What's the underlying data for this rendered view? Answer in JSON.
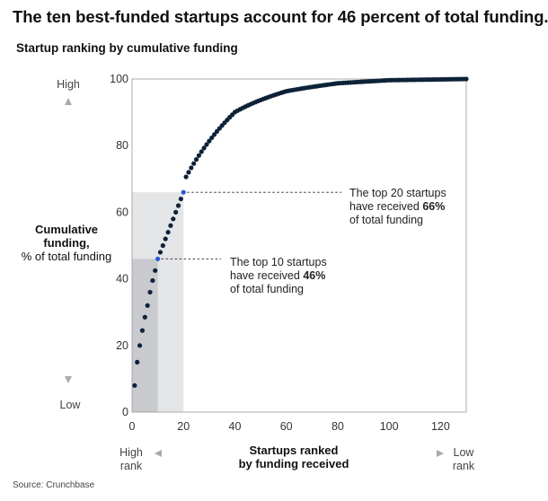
{
  "header": {
    "title": "The ten best-funded startups account for 46 percent of total funding.",
    "subtitle": "Startup ranking by cumulative funding"
  },
  "source": "Source: Crunchbase",
  "chart_data": {
    "type": "scatter",
    "title": "Startup ranking by cumulative funding",
    "xlabel": [
      "Startups ranked",
      "by funding received"
    ],
    "ylabel": [
      "Cumulative",
      "funding,",
      "% of total funding"
    ],
    "xlim": [
      0,
      130
    ],
    "ylim": [
      0,
      100
    ],
    "x_ticks": [
      0,
      20,
      40,
      60,
      80,
      100,
      120
    ],
    "y_ticks": [
      0,
      20,
      40,
      60,
      80,
      100
    ],
    "x_ends": {
      "left": [
        "High",
        "rank"
      ],
      "right": [
        "Low",
        "rank"
      ]
    },
    "y_ends": {
      "top": "High",
      "bottom": "Low"
    },
    "n_points": 130,
    "curve_model": "y = 100 * (1 - (1 - x/130)^k), k fitted so y(10) = 46",
    "anchor_points": [
      {
        "x": 1,
        "y": 8
      },
      {
        "x": 2,
        "y": 15
      },
      {
        "x": 3,
        "y": 20
      },
      {
        "x": 4,
        "y": 24.5
      },
      {
        "x": 5,
        "y": 28.5
      },
      {
        "x": 6,
        "y": 32
      },
      {
        "x": 7,
        "y": 36
      },
      {
        "x": 8,
        "y": 39.5
      },
      {
        "x": 9,
        "y": 42.5
      },
      {
        "x": 10,
        "y": 46
      },
      {
        "x": 20,
        "y": 66
      },
      {
        "x": 40,
        "y": 86
      },
      {
        "x": 60,
        "y": 93.5
      },
      {
        "x": 80,
        "y": 97.5
      },
      {
        "x": 100,
        "y": 99.3
      },
      {
        "x": 130,
        "y": 100
      }
    ],
    "highlights": [
      {
        "x": 10,
        "y": 46,
        "label": [
          "The top 10 startups",
          "have received ",
          "46%",
          "of total funding"
        ]
      },
      {
        "x": 20,
        "y": 66,
        "label": [
          "The top 20 startups",
          "have received ",
          "66%",
          "of total funding"
        ]
      }
    ],
    "colors": {
      "dot": "#0d2238",
      "highlight_dot": "#2c5bd6",
      "shade_top10": "#c8cacd",
      "shade_top20": "#e4e5e7",
      "arrow": "#aaaaaa"
    }
  }
}
